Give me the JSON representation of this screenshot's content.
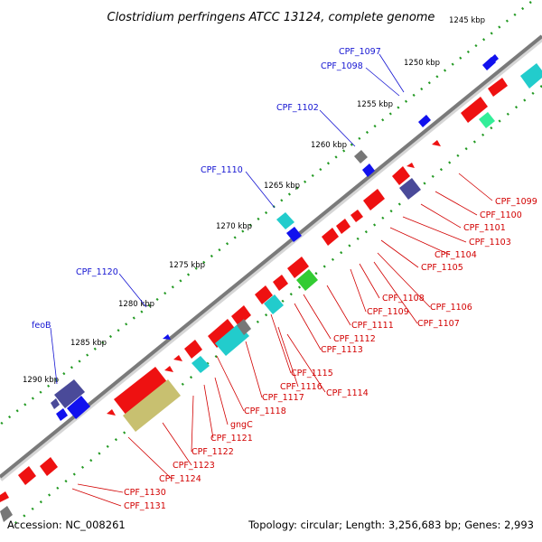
{
  "title": "Clostridium perfringens ATCC 13124, complete genome",
  "footer": {
    "accession": "Accession: NC_008261",
    "topology": "Topology: circular; Length: 3,256,683 bp; Genes: 2,993"
  },
  "scale_marks": [
    "1245 kbp",
    "1250 kbp",
    "1255 kbp",
    "1260 kbp",
    "1265 kbp",
    "1270 kbp",
    "1275 kbp",
    "1280 kbp",
    "1285 kbp",
    "1290 kbp"
  ],
  "genes_outer": [
    "CPF_1097",
    "CPF_1098",
    "CPF_1102",
    "CPF_1110",
    "CPF_1120",
    "feoB"
  ],
  "genes_inner": [
    "CPF_1099",
    "CPF_1100",
    "CPF_1101",
    "CPF_1103",
    "CPF_1104",
    "CPF_1105",
    "CPF_1106",
    "CPF_1107",
    "CPF_1108",
    "CPF_1109",
    "CPF_1111",
    "CPF_1112",
    "CPF_1113",
    "CPF_1115",
    "CPF_1116",
    "CPF_1114",
    "CPF_1117",
    "CPF_1118",
    "gngC",
    "CPF_1121",
    "CPF_1122",
    "CPF_1123",
    "CPF_1124",
    "CPF_1130",
    "CPF_1131"
  ],
  "colors": {
    "outer_label": "#1414d2",
    "inner_label": "#d20000",
    "backbone": "#7a7a7a",
    "gene_red": "#ee1111",
    "gene_blue": "#1111ee",
    "gene_cyan": "#22cccc",
    "gene_navy": "#4a4a99",
    "gene_gray": "#777777",
    "gene_green": "#33cc33",
    "gene_khaki": "#c8c070",
    "gene_mint": "#33ee99",
    "tick": "#229922"
  }
}
